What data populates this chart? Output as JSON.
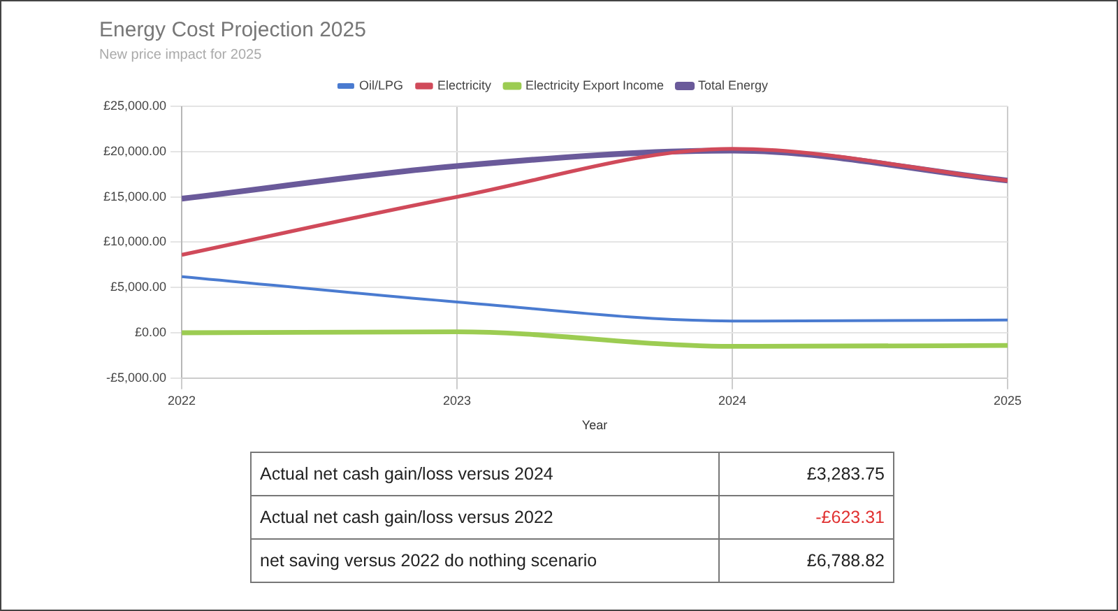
{
  "chart_data": {
    "type": "line",
    "title": "Energy Cost Projection 2025",
    "subtitle": "New price impact for 2025",
    "xlabel": "Year",
    "x": [
      2022,
      2023,
      2024,
      2025
    ],
    "xlim": [
      2022,
      2025
    ],
    "xticks": [
      2022,
      2023,
      2024,
      2025
    ],
    "ylim": [
      -5000,
      25000
    ],
    "yticks": [
      {
        "value": -5000,
        "label": "-£5,000.00"
      },
      {
        "value": 0,
        "label": "£0.00"
      },
      {
        "value": 5000,
        "label": "£5,000.00"
      },
      {
        "value": 10000,
        "label": "£10,000.00"
      },
      {
        "value": 15000,
        "label": "£15,000.00"
      },
      {
        "value": 20000,
        "label": "£20,000.00"
      },
      {
        "value": 25000,
        "label": "£25,000.00"
      }
    ],
    "series": [
      {
        "name": "Oil/LPG",
        "color": "#4a7bd0",
        "values": [
          6200,
          3400,
          1300,
          1400
        ]
      },
      {
        "name": "Electricity",
        "color": "#d04a5a",
        "values": [
          8600,
          15000,
          20300,
          16800
        ]
      },
      {
        "name": "Electricity Export Income",
        "color": "#9ccc52",
        "values": [
          0,
          100,
          -1500,
          -1400
        ]
      },
      {
        "name": "Total Energy",
        "color": "#6a5a9a",
        "values": [
          14800,
          18400,
          20100,
          16800
        ]
      }
    ],
    "grid": true,
    "legend": "top",
    "marker": "none",
    "line_style": "solid",
    "annotations": [
      "Actual net cash gain/loss versus 2024",
      "£3,283.75",
      "Actual net cash gain/loss versus 2022",
      "-£623.31",
      "net saving versus 2022 do nothing scenario",
      "£6,788.82"
    ]
  }
}
